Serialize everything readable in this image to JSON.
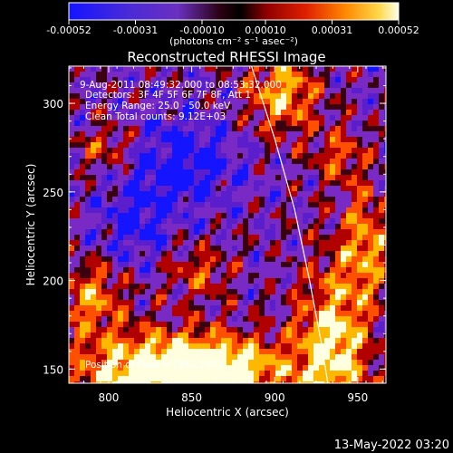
{
  "colorbar": {
    "ticks": [
      {
        "value": -0.00052,
        "label": "-0.00052"
      },
      {
        "value": -0.00031,
        "label": "-0.00031"
      },
      {
        "value": -0.0001,
        "label": "-0.00010"
      },
      {
        "value": 0.0001,
        "label": "0.00010"
      },
      {
        "value": 0.00031,
        "label": "0.00031"
      },
      {
        "value": 0.00052,
        "label": "0.00052"
      }
    ],
    "range": [
      -0.00052,
      0.00052
    ],
    "unit_label": "(photons cm⁻² s⁻¹ asec⁻²)"
  },
  "chart_data": {
    "type": "heatmap",
    "title": "Reconstructed RHESSI Image",
    "xlabel": "Heliocentric X (arcsec)",
    "ylabel": "Heliocentric Y (arcsec)",
    "xlim": [
      776,
      967
    ],
    "ylim": [
      142,
      321
    ],
    "xticks": [
      800,
      850,
      900,
      950
    ],
    "yticks": [
      150,
      200,
      250,
      300
    ],
    "colormap": [
      "#1414ff",
      "#5a1ecc",
      "#7a2ac4",
      "#3a0010",
      "#b00000",
      "#ff5000",
      "#ffb800",
      "#ffffe0"
    ],
    "peak_position": [
      941,
      140
    ],
    "annotations": {
      "time": "9-Aug-2011 08:49:32.000 to 08:53:32.000",
      "detectors": "Detectors: 3F 4F 5F 6F 7F 8F, Att 1",
      "energy": "Energy Range: 25.0 - 50.0 keV",
      "clean": "Clean     Total counts: 9.12E+03",
      "peak": "Position of Peak = [941,140]"
    },
    "limb_curve": [
      [
        886,
        321
      ],
      [
        900,
        280
      ],
      [
        912,
        240
      ],
      [
        921,
        200
      ],
      [
        928,
        165
      ],
      [
        932,
        142
      ]
    ]
  },
  "footer": {
    "timestamp": "13-May-2022 03:20"
  }
}
